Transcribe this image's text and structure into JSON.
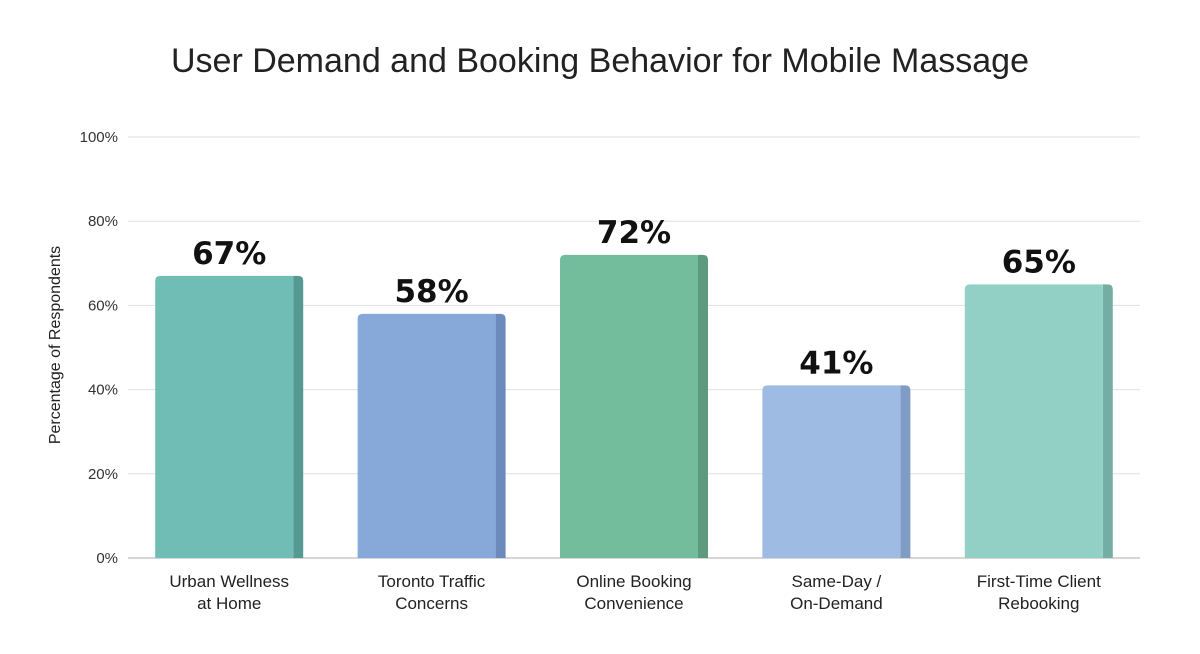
{
  "chart_data": {
    "type": "bar",
    "title": "User Demand and Booking Behavior for Mobile Massage",
    "xlabel": "",
    "ylabel": "Percentage of Respondents",
    "ylim": [
      0,
      100
    ],
    "yticks": [
      0,
      20,
      40,
      60,
      80,
      100
    ],
    "ytick_labels": [
      "0%",
      "20%",
      "40%",
      "60%",
      "80%",
      "100%"
    ],
    "grid": true,
    "legend": "none",
    "categories": [
      [
        "Urban Wellness",
        "at Home"
      ],
      [
        "Toronto Traffic",
        "Concerns"
      ],
      [
        "Online Booking",
        "Convenience"
      ],
      [
        "Same-Day /",
        "On-Demand"
      ],
      [
        "First-Time Client",
        "Rebooking"
      ]
    ],
    "values": [
      67,
      58,
      72,
      41,
      65
    ],
    "value_labels": [
      "67%",
      "58%",
      "72%",
      "41%",
      "65%"
    ],
    "colors": [
      "#6fbdb5",
      "#86a9da",
      "#74bd9c",
      "#9dbbe3",
      "#92d0c5"
    ],
    "side_colors": [
      "#559a92",
      "#6a8bbb",
      "#5d9a7e",
      "#7f9cc5",
      "#74ada3"
    ]
  }
}
